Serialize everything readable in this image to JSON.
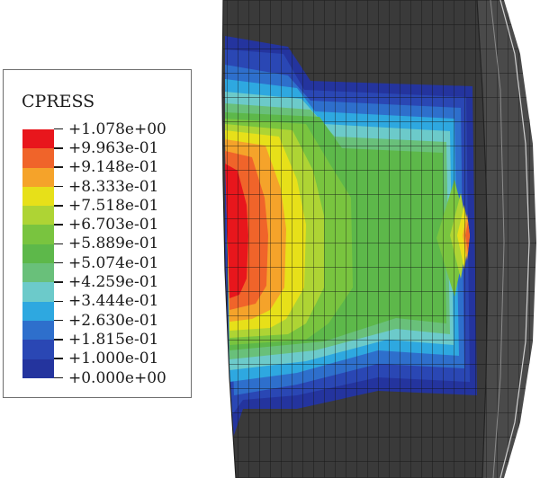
{
  "legend": {
    "title": "CPRESS",
    "labels": [
      "+1.078e+00",
      "+9.963e-01",
      "+9.148e-01",
      "+8.333e-01",
      "+7.518e-01",
      "+6.703e-01",
      "+5.889e-01",
      "+5.074e-01",
      "+4.259e-01",
      "+3.444e-01",
      "+2.630e-01",
      "+1.815e-01",
      "+1.000e-01",
      "+0.000e+00"
    ],
    "colors": [
      "#e8161c",
      "#f0642a",
      "#f5a32a",
      "#e7e019",
      "#aed434",
      "#79c43f",
      "#5db84a",
      "#69c07a",
      "#6ccaca",
      "#2ea8e0",
      "#2e6fcc",
      "#2a47b4",
      "#24349e",
      "#3a3a3a"
    ]
  }
}
